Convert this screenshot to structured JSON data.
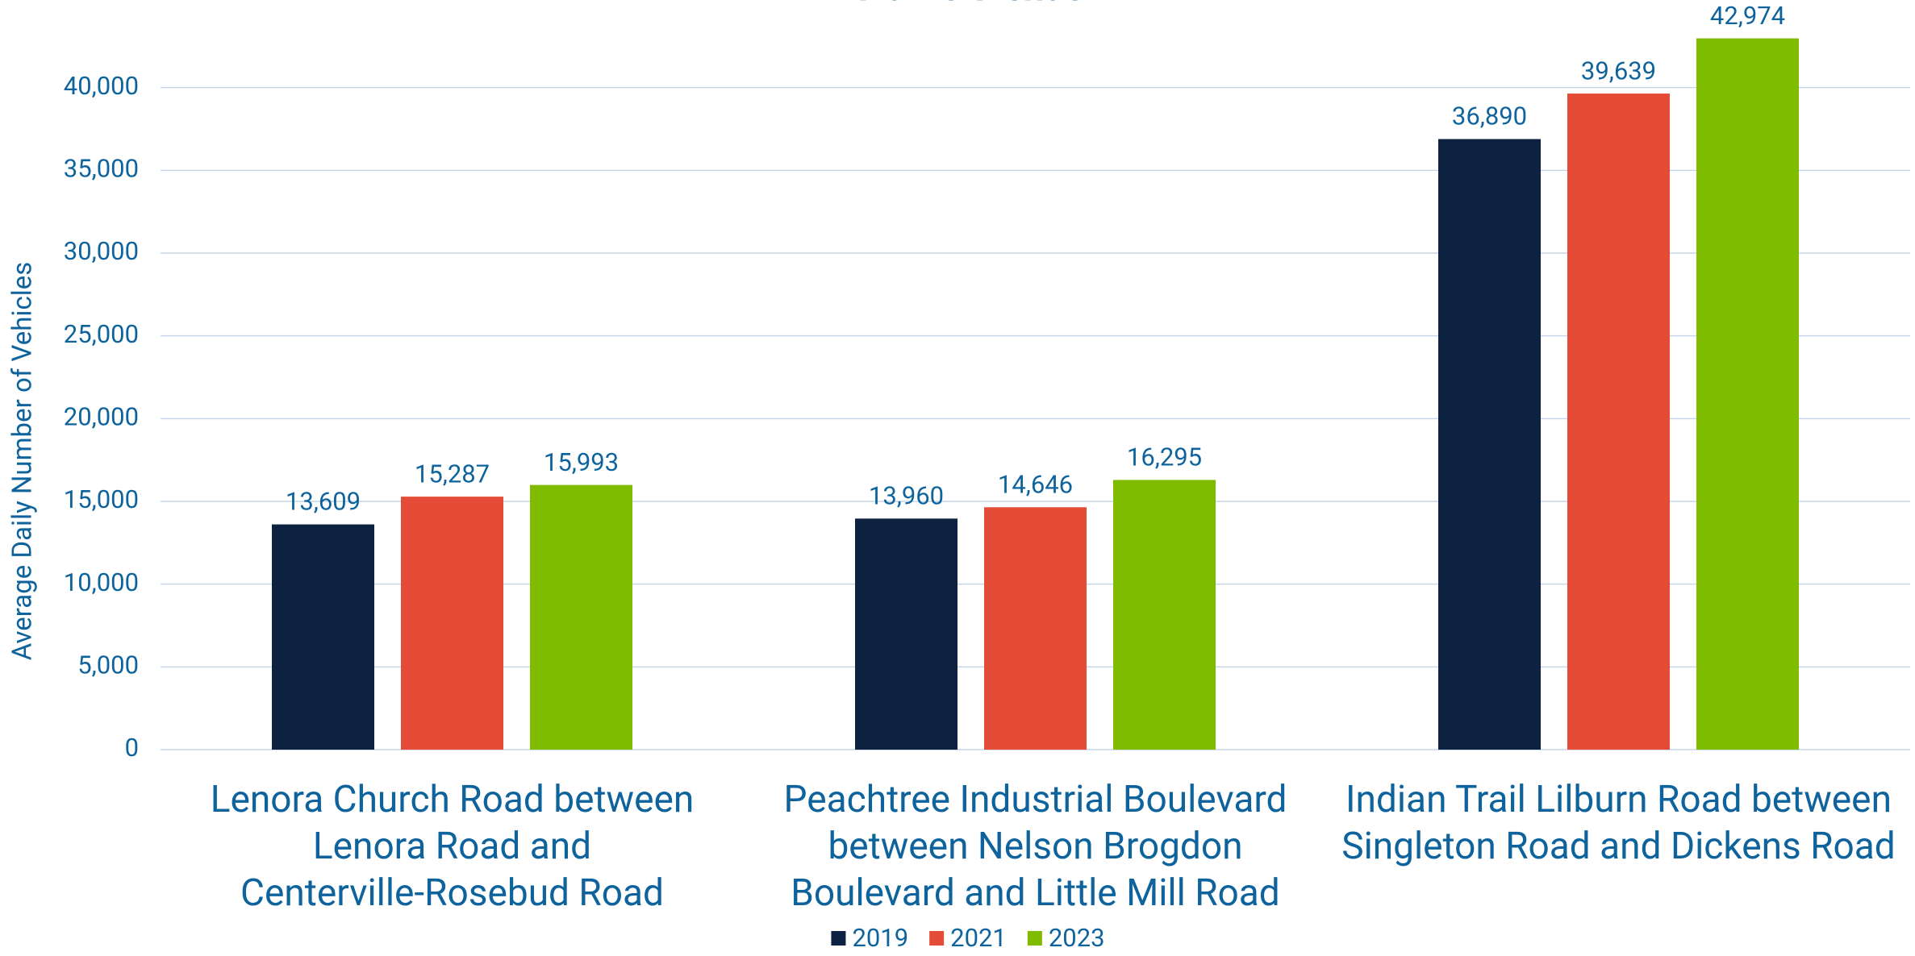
{
  "chart_data": {
    "type": "bar",
    "title": "Traffic Trends",
    "ylabel": "Average Daily Number of Vehicles",
    "categories": [
      "Lenora Church Road between Lenora Road and Centerville-Rosebud Road",
      "Peachtree Industrial Boulevard between Nelson Brogdon Boulevard and Little Mill Road",
      "Indian Trail Lilburn Road between Singleton Road and Dickens Road"
    ],
    "series": [
      {
        "name": "2019",
        "color": "#0d2240",
        "values": [
          13609,
          13960,
          36890
        ],
        "value_labels": [
          "13,609",
          "13,960",
          "36,890"
        ]
      },
      {
        "name": "2021",
        "color": "#e54c38",
        "values": [
          15287,
          14646,
          39639
        ],
        "value_labels": [
          "15,287",
          "14,646",
          "39,639"
        ]
      },
      {
        "name": "2023",
        "color": "#7fbc00",
        "values": [
          15993,
          16295,
          42974
        ],
        "value_labels": [
          "15,993",
          "16,295",
          "42,974"
        ]
      }
    ],
    "ylim": [
      0,
      45000
    ],
    "yticks": [
      0,
      {
        "value": 5000,
        "label": "5,000"
      },
      {
        "value": 10000,
        "label": "10,000"
      },
      {
        "value": 15000,
        "label": "15,000"
      },
      {
        "value": 20000,
        "label": "20,000"
      },
      {
        "value": 25000,
        "label": "25,000"
      },
      {
        "value": 30000,
        "label": "30,000"
      },
      {
        "value": 35000,
        "label": "35,000"
      },
      {
        "value": 40000,
        "label": "40,000"
      }
    ],
    "grid": true,
    "legend": "bottom"
  }
}
